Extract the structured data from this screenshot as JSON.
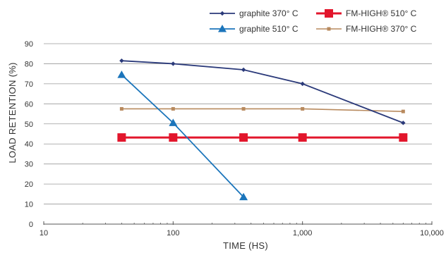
{
  "chart_data": {
    "type": "line",
    "xlabel": "TIME (HS)",
    "ylabel": "LOAD RETENTION (%)",
    "x_scale": "log",
    "xlim": [
      10,
      10000
    ],
    "ylim": [
      0,
      90
    ],
    "x_ticks": [
      10,
      100,
      1000,
      10000
    ],
    "x_tick_labels": [
      "10",
      "100",
      "1,000",
      "10,000"
    ],
    "y_ticks": [
      0,
      10,
      20,
      30,
      40,
      50,
      60,
      70,
      80,
      90
    ],
    "y_tick_labels": [
      "0",
      "10",
      "20",
      "30",
      "40",
      "50",
      "60",
      "70",
      "80",
      "90"
    ],
    "grid": "horizontal",
    "legend_position": "top-right",
    "series": [
      {
        "name": "graphite 370° C",
        "color": "#2b3a7a",
        "marker": "diamond",
        "points": [
          [
            40,
            81.5
          ],
          [
            100,
            80
          ],
          [
            350,
            77
          ],
          [
            1000,
            70
          ],
          [
            6000,
            50.5
          ]
        ]
      },
      {
        "name": "graphite 510° C",
        "color": "#1b75bb",
        "marker": "triangle",
        "points": [
          [
            40,
            74.5
          ],
          [
            100,
            50.5
          ],
          [
            350,
            13.5
          ]
        ]
      },
      {
        "name": "FM-HIGH® 510° C",
        "color": "#e2162c",
        "marker": "square",
        "points": [
          [
            40,
            43.2
          ],
          [
            100,
            43.2
          ],
          [
            350,
            43.2
          ],
          [
            1000,
            43.2
          ],
          [
            6000,
            43.2
          ]
        ]
      },
      {
        "name": "FM-HIGH® 370° C",
        "color": "#b88a5e",
        "marker": "small-square",
        "points": [
          [
            40,
            57.5
          ],
          [
            100,
            57.5
          ],
          [
            350,
            57.5
          ],
          [
            1000,
            57.5
          ],
          [
            6000,
            56.2
          ]
        ]
      }
    ]
  }
}
